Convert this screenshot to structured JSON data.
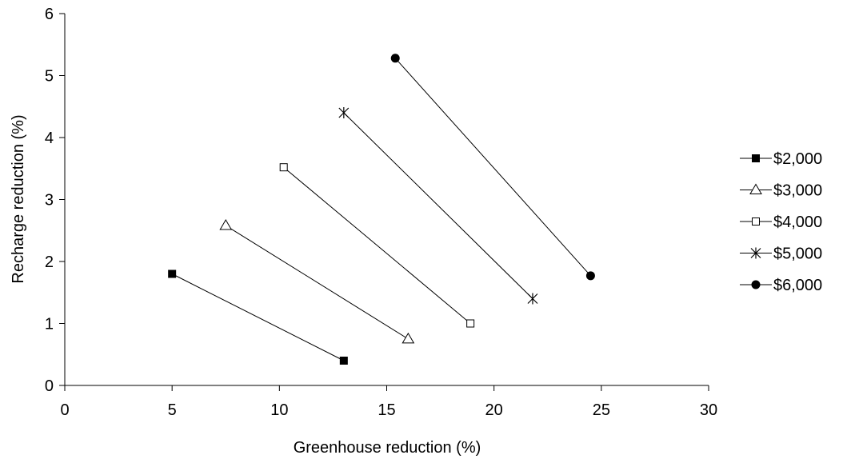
{
  "chart_data": {
    "type": "scatter",
    "title": "",
    "xlabel": "Greenhouse reduction (%)",
    "ylabel": "Recharge reduction (%)",
    "xlim": [
      0,
      30
    ],
    "ylim": [
      0,
      6
    ],
    "xticks": [
      0,
      5,
      10,
      15,
      20,
      25,
      30
    ],
    "yticks": [
      0,
      1,
      2,
      3,
      4,
      5,
      6
    ],
    "grid": false,
    "legend_position": "right",
    "series": [
      {
        "name": "$2,000",
        "marker": "filled-square",
        "points": [
          [
            5.0,
            1.8
          ],
          [
            13.0,
            0.4
          ]
        ]
      },
      {
        "name": "$3,000",
        "marker": "open-triangle",
        "points": [
          [
            7.5,
            2.58
          ],
          [
            16.0,
            0.75
          ]
        ]
      },
      {
        "name": "$4,000",
        "marker": "open-square",
        "points": [
          [
            10.2,
            3.52
          ],
          [
            18.9,
            1.0
          ]
        ]
      },
      {
        "name": "$5,000",
        "marker": "star",
        "points": [
          [
            13.0,
            4.4
          ],
          [
            21.8,
            1.4
          ]
        ]
      },
      {
        "name": "$6,000",
        "marker": "filled-circle",
        "points": [
          [
            15.4,
            5.28
          ],
          [
            24.5,
            1.77
          ]
        ]
      }
    ]
  }
}
